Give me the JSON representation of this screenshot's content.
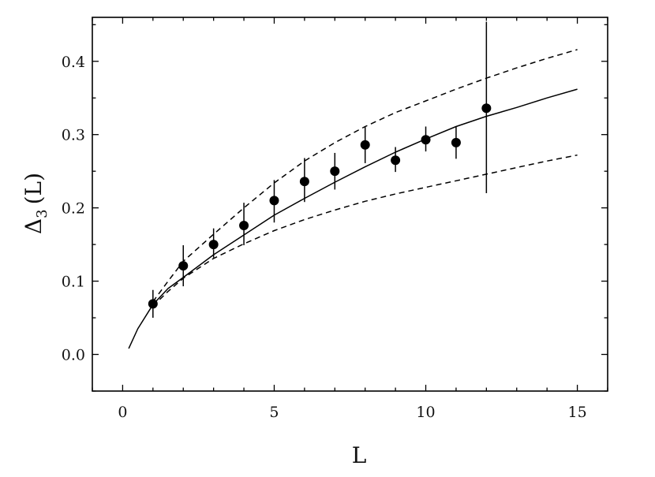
{
  "chart_data": {
    "type": "scatter",
    "title": "",
    "xlabel": "L",
    "ylabel": {
      "symbol": "Δ",
      "subscript": "3",
      "argument": "(L)"
    },
    "xlim": [
      -1,
      16
    ],
    "ylim": [
      -0.05,
      0.46
    ],
    "xticks": [
      0,
      5,
      10,
      15
    ],
    "xtick_labels": [
      "0",
      "5",
      "10",
      "15"
    ],
    "yticks": [
      0.0,
      0.1,
      0.2,
      0.3,
      0.4
    ],
    "ytick_labels": [
      "0.0",
      "0.1",
      "0.2",
      "0.3",
      "0.4"
    ],
    "grid": false,
    "legend": "none",
    "series": [
      {
        "kind": "points-with-error-bars",
        "color": "#000000",
        "x": [
          1,
          2,
          3,
          4,
          5,
          6,
          7,
          8,
          9,
          10,
          11,
          12
        ],
        "y": [
          0.069,
          0.121,
          0.15,
          0.176,
          0.21,
          0.236,
          0.25,
          0.286,
          0.265,
          0.293,
          0.289,
          0.336
        ],
        "y_err_low": [
          0.019,
          0.028,
          0.018,
          0.027,
          0.03,
          0.028,
          0.025,
          0.025,
          0.016,
          0.016,
          0.022,
          0.116
        ],
        "y_err_high": [
          0.019,
          0.028,
          0.022,
          0.031,
          0.028,
          0.032,
          0.025,
          0.025,
          0.018,
          0.018,
          0.022,
          0.118
        ]
      },
      {
        "kind": "solid-curve",
        "color": "#000000",
        "x": [
          0.2,
          0.5,
          1,
          1.5,
          2,
          3,
          4,
          5,
          6,
          7,
          8,
          9,
          10,
          11,
          12,
          13,
          14,
          15
        ],
        "y": [
          0.008,
          0.035,
          0.068,
          0.09,
          0.105,
          0.136,
          0.163,
          0.19,
          0.213,
          0.235,
          0.256,
          0.276,
          0.294,
          0.311,
          0.325,
          0.337,
          0.35,
          0.362
        ]
      },
      {
        "kind": "dashed-curve-upper",
        "color": "#000000",
        "x": [
          1,
          1.5,
          2,
          3,
          4,
          5,
          6,
          7,
          8,
          9,
          10,
          11,
          12,
          13,
          14,
          15
        ],
        "y": [
          0.072,
          0.1,
          0.127,
          0.164,
          0.2,
          0.234,
          0.264,
          0.289,
          0.311,
          0.33,
          0.346,
          0.362,
          0.377,
          0.391,
          0.404,
          0.416
        ]
      },
      {
        "kind": "dashed-curve-lower",
        "color": "#000000",
        "x": [
          1,
          1.5,
          2,
          3,
          4,
          5,
          6,
          7,
          8,
          9,
          10,
          11,
          12,
          13,
          14,
          15
        ],
        "y": [
          0.066,
          0.086,
          0.104,
          0.131,
          0.151,
          0.169,
          0.184,
          0.197,
          0.209,
          0.219,
          0.228,
          0.237,
          0.246,
          0.255,
          0.264,
          0.272
        ]
      }
    ]
  }
}
